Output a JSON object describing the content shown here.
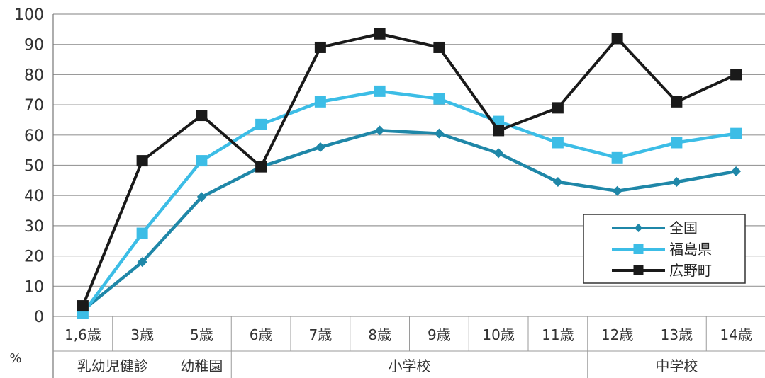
{
  "chart_data": {
    "type": "line",
    "y_unit": "%",
    "ylim": [
      0,
      100
    ],
    "yticks": [
      0,
      10,
      20,
      30,
      40,
      50,
      60,
      70,
      80,
      90,
      100
    ],
    "grid": true,
    "legend_position": "bottom-right",
    "categories": [
      "1,6歳",
      "3歳",
      "5歳",
      "6歳",
      "7歳",
      "8歳",
      "9歳",
      "10歳",
      "11歳",
      "12歳",
      "13歳",
      "14歳"
    ],
    "groups": [
      {
        "label": "乳幼児健診",
        "span": 2
      },
      {
        "label": "幼稚園",
        "span": 1
      },
      {
        "label": "小学校",
        "span": 6
      },
      {
        "label": "中学校",
        "span": 3
      }
    ],
    "series": [
      {
        "name": "全国",
        "color": "#1f87a8",
        "marker": "diamond",
        "values": [
          2,
          18,
          39.5,
          49.5,
          56,
          61.5,
          60.5,
          54,
          44.5,
          41.5,
          44.5,
          48
        ]
      },
      {
        "name": "福島県",
        "color": "#3cbde6",
        "marker": "square",
        "values": [
          1,
          27.5,
          51.5,
          63.5,
          71,
          74.5,
          72,
          64.5,
          57.5,
          52.5,
          57.5,
          60.5
        ]
      },
      {
        "name": "広野町",
        "color": "#1a1a1a",
        "marker": "square",
        "values": [
          3.5,
          51.5,
          66.5,
          49.5,
          89,
          93.5,
          89,
          61.5,
          69,
          92,
          71,
          80
        ]
      }
    ]
  }
}
